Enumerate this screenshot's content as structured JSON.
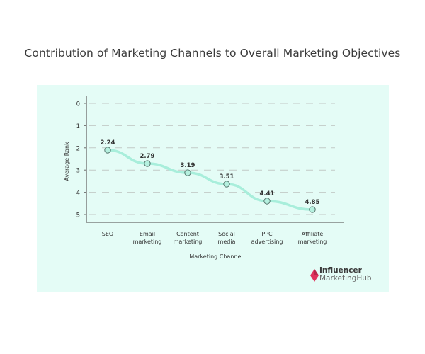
{
  "chart_data": {
    "type": "line",
    "title": "Contribution of Marketing Channels to Overall Marketing Objectives",
    "xlabel": "Marketing Channel",
    "ylabel": "Average Rank",
    "categories": [
      "SEO",
      "Email marketing",
      "Content marketing",
      "Social media",
      "PPC advertising",
      "Affiliate marketing"
    ],
    "category_lines": [
      [
        "SEO"
      ],
      [
        "Email",
        "marketing"
      ],
      [
        "Content",
        "marketing"
      ],
      [
        "Social",
        "media"
      ],
      [
        "PPC",
        "advertising"
      ],
      [
        "Affiliate",
        "marketing"
      ]
    ],
    "values": [
      2.24,
      2.79,
      3.19,
      3.51,
      4.41,
      4.85
    ],
    "value_labels": [
      "2.24",
      "2.79",
      "3.19",
      "3.51",
      "4.41",
      "4.85"
    ],
    "yticks": [
      "0",
      "1",
      "2",
      "3",
      "4",
      "5"
    ],
    "ylim": [
      0,
      5
    ],
    "y_inverted": true,
    "grid": "horizontal dashed",
    "legend": null,
    "colors": {
      "line": "#a8eedb",
      "marker_fill": "#b5f0df",
      "marker_stroke": "#4a6b62",
      "background": "#e4fcf6",
      "axis": "#6b6b6b",
      "grid": "#c2c9c6"
    }
  },
  "branding": {
    "line1": "Influencer",
    "line2": "MarketingHub",
    "accent": "#e0325c"
  }
}
